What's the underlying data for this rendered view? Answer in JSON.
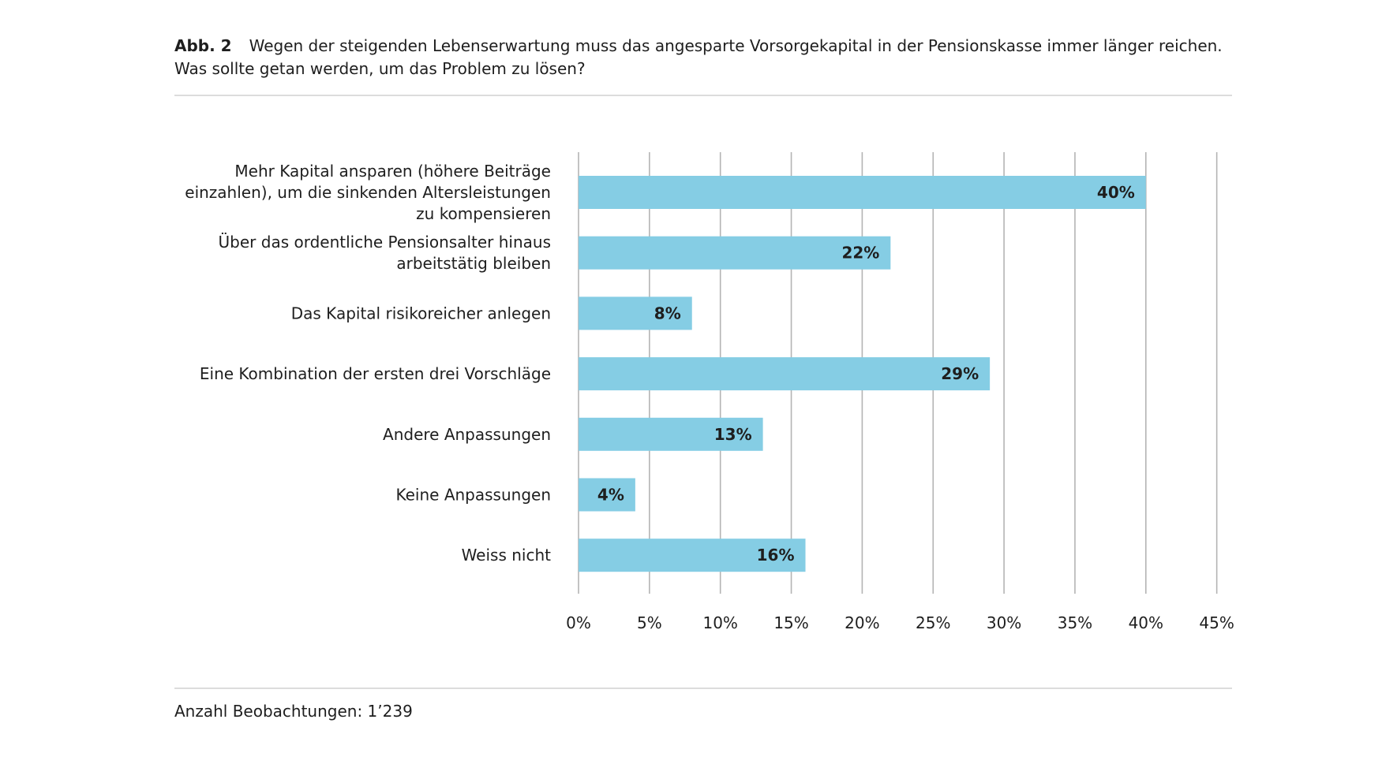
{
  "header": {
    "figure_label": "Abb. 2",
    "question_line1": "Wegen der steigenden Lebenserwartung muss das angesparte Vorsorgekapital in der Pensionskasse immer länger reichen.",
    "question_line2": "Was sollte getan werden, um das Problem zu lösen?"
  },
  "footer": {
    "observations": "Anzahl Beobachtungen: 1’239"
  },
  "colors": {
    "bar": "#85cde4",
    "grid": "#b4b4b4",
    "text": "#1e1e1e",
    "rule": "#dcdcdc"
  },
  "chart_data": {
    "type": "bar",
    "orientation": "horizontal",
    "categories": [
      [
        "Mehr Kapital ansparen (höhere Beiträge",
        "einzahlen), um die sinkenden Altersleistungen",
        "zu kompensieren"
      ],
      [
        "Über das ordentliche Pensionsalter hinaus",
        "arbeitstätig bleiben"
      ],
      [
        "Das Kapital risikoreicher anlegen"
      ],
      [
        "Eine Kombination der ersten drei Vorschläge"
      ],
      [
        "Andere Anpassungen"
      ],
      [
        "Keine Anpassungen"
      ],
      [
        "Weiss nicht"
      ]
    ],
    "values": [
      40,
      22,
      8,
      29,
      13,
      4,
      16
    ],
    "value_labels": [
      "40%",
      "22%",
      "8%",
      "29%",
      "13%",
      "4%",
      "16%"
    ],
    "xlim": [
      0,
      45
    ],
    "xticks": [
      0,
      5,
      10,
      15,
      20,
      25,
      30,
      35,
      40,
      45
    ],
    "xtick_labels": [
      "0%",
      "5%",
      "10%",
      "15%",
      "20%",
      "25%",
      "30%",
      "35%",
      "40%",
      "45%"
    ],
    "grid": "vertical"
  }
}
